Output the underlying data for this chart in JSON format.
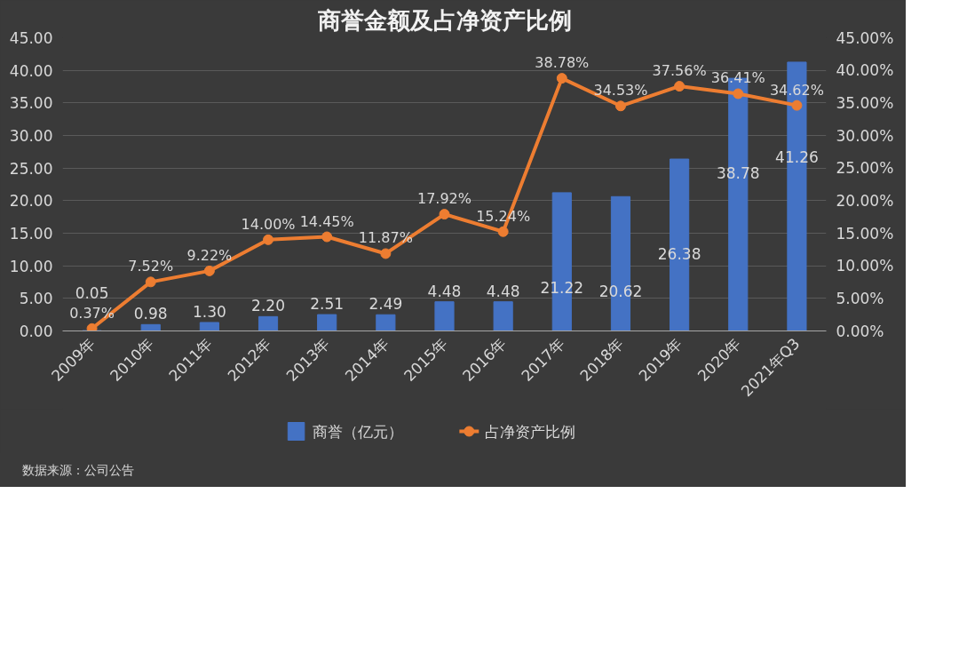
{
  "chart_data": {
    "type": "bar",
    "title": "商誉金额及占净资产比例",
    "categories": [
      "2009年",
      "2010年",
      "2011年",
      "2012年",
      "2013年",
      "2014年",
      "2015年",
      "2016年",
      "2017年",
      "2018年",
      "2019年",
      "2020年",
      "2021年Q3"
    ],
    "series": [
      {
        "name": "商誉（亿元）",
        "color": "#4472c4",
        "values": [
          0.05,
          0.98,
          1.3,
          2.2,
          2.51,
          2.49,
          4.48,
          4.48,
          21.22,
          20.62,
          26.38,
          38.78,
          41.26
        ],
        "value_labels": [
          "0.05",
          "0.98",
          "1.30",
          "2.20",
          "2.51",
          "2.49",
          "4.48",
          "4.48",
          "21.22",
          "20.62",
          "26.38",
          "38.78",
          "41.26"
        ]
      },
      {
        "name": "占净资产比例",
        "type": "line",
        "axis": "y2",
        "color": "#ed7d31",
        "values": [
          0.37,
          7.52,
          9.22,
          14.0,
          14.45,
          11.87,
          17.92,
          15.24,
          38.78,
          34.53,
          37.56,
          36.41,
          34.62
        ],
        "value_labels": [
          "0.37%",
          "7.52%",
          "9.22%",
          "14.00%",
          "14.45%",
          "11.87%",
          "17.92%",
          "15.24%",
          "38.78%",
          "34.53%",
          "37.56%",
          "36.41%",
          "34.62%"
        ]
      }
    ],
    "ylim": [
      0,
      45
    ],
    "yticks": [
      {
        "value": 0,
        "label": "0.00"
      },
      {
        "value": 5,
        "label": "5.00"
      },
      {
        "value": 10,
        "label": "10.00"
      },
      {
        "value": 15,
        "label": "15.00"
      },
      {
        "value": 20,
        "label": "20.00"
      },
      {
        "value": 25,
        "label": "25.00"
      },
      {
        "value": 30,
        "label": "30.00"
      },
      {
        "value": 35,
        "label": "35.00"
      },
      {
        "value": 40,
        "label": "40.00"
      },
      {
        "value": 45,
        "label": "45.00"
      }
    ],
    "y2lim": [
      0,
      45
    ],
    "y2ticks": [
      {
        "value": 0,
        "label": "0.00%"
      },
      {
        "value": 5,
        "label": "5.00%"
      },
      {
        "value": 10,
        "label": "10.00%"
      },
      {
        "value": 15,
        "label": "15.00%"
      },
      {
        "value": 20,
        "label": "20.00%"
      },
      {
        "value": 25,
        "label": "25.00%"
      },
      {
        "value": 30,
        "label": "30.00%"
      },
      {
        "value": 35,
        "label": "35.00%"
      },
      {
        "value": 40,
        "label": "40.00%"
      },
      {
        "value": 45,
        "label": "45.00%"
      }
    ],
    "grid": "y",
    "legend": "bottom",
    "marker": "circle",
    "line_style": "solid",
    "annotations": [
      "数据来源：公司公告"
    ]
  }
}
